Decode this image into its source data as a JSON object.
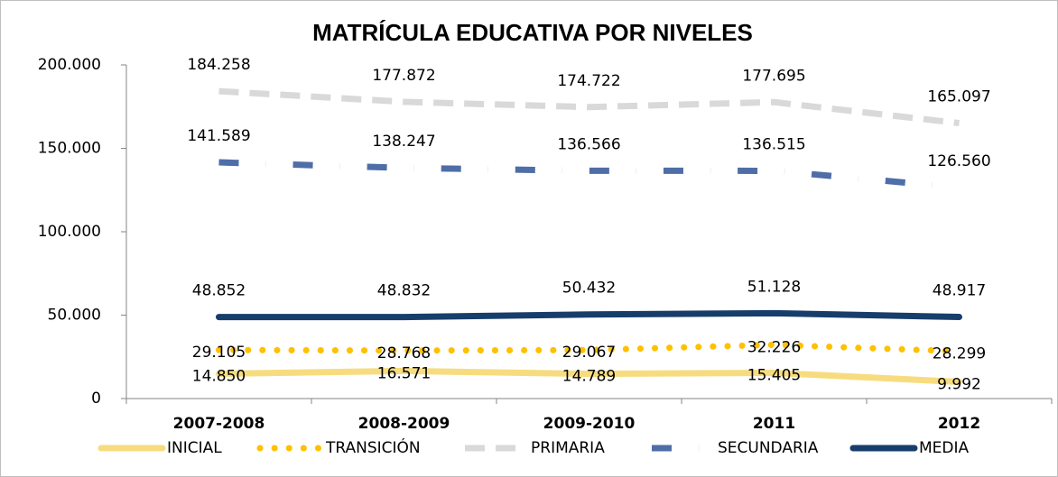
{
  "chart_data": {
    "type": "line",
    "title": "MATRÍCULA EDUCATIVA POR NIVELES",
    "categories": [
      "2007-2008",
      "2008-2009",
      "2009-2010",
      "2011",
      "2012"
    ],
    "series": [
      {
        "name": "INICIAL",
        "color": "#f7dc7f",
        "style": "solid",
        "values": [
          14850,
          16571,
          14789,
          15405,
          9992
        ],
        "value_labels": [
          "14.850",
          "16.571",
          "14.789",
          "15.405",
          "9.992"
        ]
      },
      {
        "name": "TRANSICIÓN",
        "color": "#ffc000",
        "style": "dotted",
        "values": [
          29105,
          28768,
          29067,
          32226,
          28299
        ],
        "value_labels": [
          "29.105",
          "28.768",
          "29.067",
          "32.226",
          "28.299"
        ]
      },
      {
        "name": "PRIMARIA",
        "color": "#d9d9d9",
        "style": "dashed",
        "values": [
          184258,
          177872,
          174722,
          177695,
          165097
        ],
        "value_labels": [
          "184.258",
          "177.872",
          "174.722",
          "177.695",
          "165.097"
        ]
      },
      {
        "name": "SECUNDARIA",
        "color": "#4f6ea8",
        "style": "dashdot",
        "values": [
          141589,
          138247,
          136566,
          136515,
          126560
        ],
        "value_labels": [
          "141.589",
          "138.247",
          "136.566",
          "136.515",
          "126.560"
        ]
      },
      {
        "name": "MEDIA",
        "color": "#173d6b",
        "style": "solid",
        "values": [
          48852,
          48832,
          50432,
          51128,
          48917
        ],
        "value_labels": [
          "48.852",
          "48.832",
          "50.432",
          "51.128",
          "48.917"
        ]
      }
    ],
    "ylim": [
      0,
      200000
    ],
    "yticks": [
      0,
      {
        "value": 50000,
        "label": "50.000"
      },
      {
        "value": 100000,
        "label": "100.000"
      },
      {
        "value": 150000,
        "label": "150.000"
      },
      {
        "value": 200000,
        "label": "200.000"
      }
    ]
  }
}
